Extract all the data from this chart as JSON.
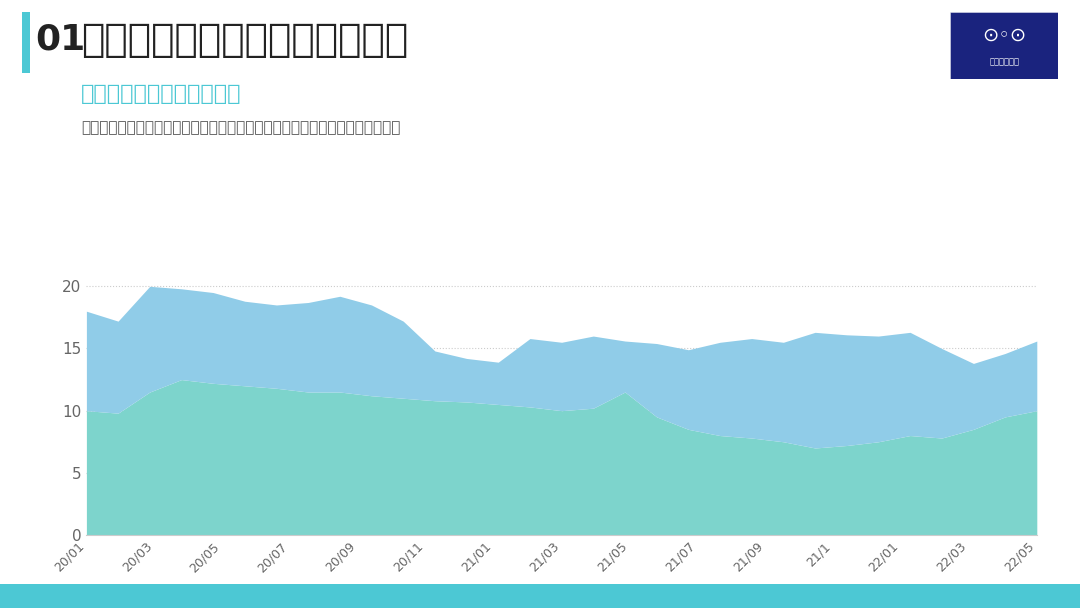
{
  "title_number": "01",
  "title_main": "大众汽车在中国汽车市场占有率",
  "subtitle": "高渗透率的新能源汽车时代",
  "description": "大众汽车在中国的市场占有率在下跌，整体的经营状态特别是盈利状况是下滑的",
  "background_color": "#ffffff",
  "footer_color": "#4cc8d4",
  "title_bar_color": "#4cc8d4",
  "title_number_color": "#ffffff",
  "title_text_color": "#222222",
  "subtitle_color": "#4cc8d4",
  "description_color": "#555555",
  "area1_color": "#90cce8",
  "area2_color": "#7dd4cc",
  "grid_color": "#cccccc",
  "axis_color": "#aaaaaa",
  "ylim": [
    0,
    22
  ],
  "yticks": [
    0,
    5,
    10,
    15,
    20
  ],
  "x_labels": [
    "20/01",
    "20/03",
    "20/05",
    "20/07",
    "20/09",
    "20/11",
    "21/01",
    "21/03",
    "21/05",
    "21/07",
    "21/09",
    "21/1",
    "22/01",
    "22/03",
    "22/05"
  ],
  "upper_series": [
    18.0,
    17.2,
    20.0,
    19.8,
    19.5,
    18.8,
    18.5,
    18.7,
    19.2,
    18.5,
    17.2,
    14.8,
    14.2,
    13.9,
    15.8,
    15.5,
    16.0,
    15.6,
    15.4,
    14.9,
    15.5,
    15.8,
    15.5,
    16.3,
    16.1,
    16.0,
    16.3,
    15.0,
    13.8,
    14.6,
    15.6
  ],
  "lower_series": [
    10.0,
    9.8,
    11.5,
    12.5,
    12.2,
    12.0,
    11.8,
    11.5,
    11.5,
    11.2,
    11.0,
    10.8,
    10.7,
    10.5,
    10.3,
    10.0,
    10.2,
    11.5,
    9.5,
    8.5,
    8.0,
    7.8,
    7.5,
    7.0,
    7.2,
    7.5,
    8.0,
    7.8,
    8.5,
    9.5,
    10.0
  ]
}
